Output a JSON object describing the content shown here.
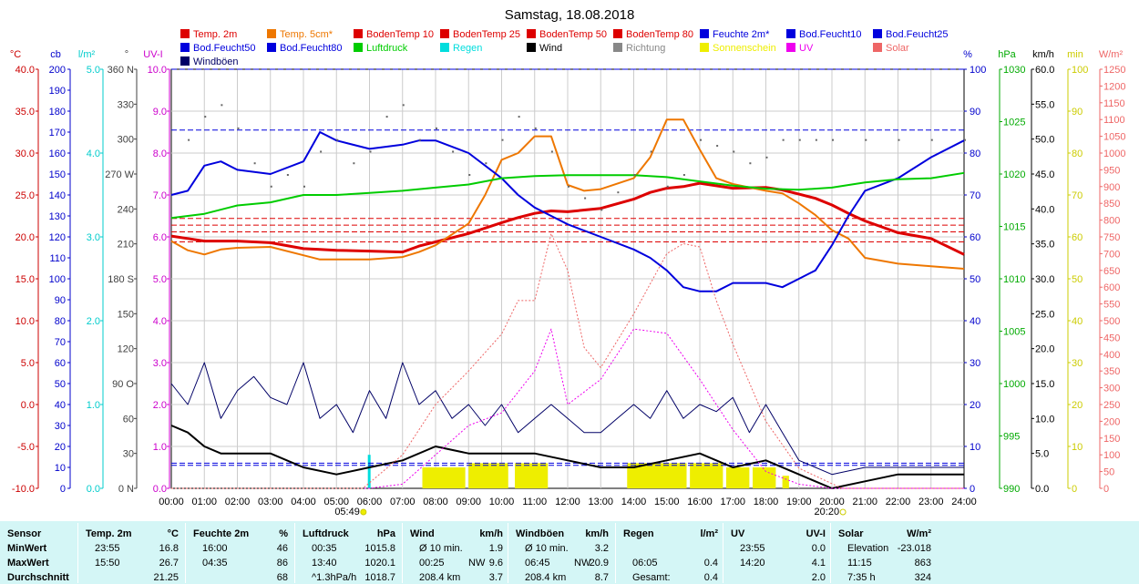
{
  "chart_data": {
    "type": "line",
    "title": "Samstag, 18.08.2018",
    "x_ticks": [
      "00:00",
      "01:00",
      "02:00",
      "03:00",
      "04:00",
      "05:00",
      "06:00",
      "07:00",
      "08:00",
      "09:00",
      "10:00",
      "11:00",
      "12:00",
      "13:00",
      "14:00",
      "15:00",
      "16:00",
      "17:00",
      "18:00",
      "19:00",
      "20:00",
      "21:00",
      "22:00",
      "23:00",
      "24:00"
    ],
    "xlim_hours": [
      0,
      24
    ],
    "grid": true,
    "legend_position": "top",
    "sunrise": "05:49",
    "sunset": "20:20",
    "axes": {
      "temp": {
        "unit": "°C",
        "ticks": [
          "40.0",
          "35.0",
          "30.0",
          "25.0",
          "20.0",
          "15.0",
          "10.0",
          "5.0",
          "0.0",
          "-5.0",
          "-10.0"
        ],
        "range": [
          -10,
          40
        ],
        "color": "#cc0000"
      },
      "cb": {
        "unit": "cb",
        "ticks": [
          "200",
          "190",
          "180",
          "170",
          "160",
          "150",
          "140",
          "130",
          "120",
          "110",
          "100",
          "90",
          "80",
          "70",
          "60",
          "50",
          "40",
          "30",
          "20",
          "10",
          "0"
        ],
        "range": [
          0,
          200
        ],
        "color": "#0000cc"
      },
      "rain": {
        "unit": "l/m²",
        "ticks": [
          "5.0",
          "4.0",
          "3.0",
          "2.0",
          "1.0",
          "0.0"
        ],
        "range": [
          0,
          5
        ],
        "color": "#00cccc"
      },
      "dir": {
        "unit": "°",
        "ticks": [
          "360 N",
          "330",
          "300",
          "270 W",
          "240",
          "210",
          "180 S",
          "150",
          "120",
          "90 O",
          "60",
          "30",
          "0 N"
        ],
        "range": [
          0,
          360
        ],
        "color": "#404040"
      },
      "uv": {
        "unit": "UV-I",
        "ticks": [
          "10.0",
          "9.0",
          "8.0",
          "7.0",
          "6.0",
          "5.0",
          "4.0",
          "3.0",
          "2.0",
          "1.0",
          "0.0"
        ],
        "range": [
          0,
          10
        ],
        "color": "#cc00cc"
      },
      "hum": {
        "unit": "%",
        "ticks": [
          "100",
          "90",
          "80",
          "70",
          "60",
          "50",
          "40",
          "30",
          "20",
          "10",
          "0"
        ],
        "range": [
          0,
          100
        ],
        "color": "#0000cc"
      },
      "press": {
        "unit": "hPa",
        "ticks": [
          "1030",
          "1025",
          "1020",
          "1015",
          "1010",
          "1005",
          "1000",
          "995",
          "990"
        ],
        "range": [
          990,
          1030
        ],
        "color": "#00aa00"
      },
      "wind": {
        "unit": "km/h",
        "ticks": [
          "60.0",
          "55.0",
          "50.0",
          "45.0",
          "40.0",
          "35.0",
          "30.0",
          "25.0",
          "20.0",
          "15.0",
          "10.0",
          "5.0",
          "0.0"
        ],
        "range": [
          0,
          60
        ],
        "color": "#000000"
      },
      "sunmin": {
        "unit": "min",
        "ticks": [
          "100",
          "90",
          "80",
          "70",
          "60",
          "50",
          "40",
          "30",
          "20",
          "10",
          "0"
        ],
        "range": [
          0,
          100
        ],
        "color": "#cccc00"
      },
      "solar": {
        "unit": "W/m²",
        "ticks": [
          "1250",
          "1200",
          "1150",
          "1100",
          "1050",
          "1000",
          "950",
          "900",
          "850",
          "800",
          "750",
          "700",
          "650",
          "600",
          "550",
          "500",
          "450",
          "400",
          "350",
          "300",
          "250",
          "200",
          "150",
          "100",
          "50",
          "0"
        ],
        "range": [
          0,
          1250
        ],
        "color": "#ee6666"
      }
    },
    "legend": [
      {
        "label": "Temp. 2m",
        "color": "#dd0000"
      },
      {
        "label": "Temp. 5cm*",
        "color": "#ee7700"
      },
      {
        "label": "BodenTemp 10",
        "color": "#dd0000"
      },
      {
        "label": "BodenTemp 25",
        "color": "#dd0000"
      },
      {
        "label": "BodenTemp 50",
        "color": "#dd0000"
      },
      {
        "label": "BodenTemp 80",
        "color": "#dd0000"
      },
      {
        "label": "Feuchte 2m*",
        "color": "#0000dd"
      },
      {
        "label": "Bod.Feucht10",
        "color": "#0000dd"
      },
      {
        "label": "Bod.Feucht25",
        "color": "#0000dd"
      },
      {
        "label": "Bod.Feucht50",
        "color": "#0000dd"
      },
      {
        "label": "Bod.Feucht80",
        "color": "#0000dd"
      },
      {
        "label": "Luftdruck",
        "color": "#00cc00"
      },
      {
        "label": "Regen",
        "color": "#00dddd"
      },
      {
        "label": "Wind",
        "color": "#000000"
      },
      {
        "label": "Richtung",
        "color": "#888888"
      },
      {
        "label": "Sonnenschein",
        "color": "#eeee00"
      },
      {
        "label": "UV",
        "color": "#ee00ee"
      },
      {
        "label": "Solar",
        "color": "#ee6666"
      },
      {
        "label": "Windböen",
        "color": "#000066"
      }
    ],
    "series": [
      {
        "name": "Temp. 2m",
        "axis": "temp",
        "color": "#dd0000",
        "width": 3,
        "x": [
          0,
          0.5,
          1,
          2,
          3,
          4,
          4.5,
          5,
          6,
          7,
          7.5,
          8,
          9,
          10,
          10.5,
          11,
          11.5,
          12,
          13,
          14,
          14.5,
          15,
          15.5,
          16,
          16.5,
          17,
          18,
          18.5,
          19,
          19.5,
          20,
          20.5,
          21,
          22,
          23,
          24
        ],
        "y": [
          20.1,
          19.8,
          19.5,
          19.5,
          19.3,
          18.6,
          18.5,
          18.4,
          18.3,
          18.2,
          18.9,
          19.4,
          20.4,
          21.7,
          22.3,
          22.8,
          23.1,
          23.0,
          23.4,
          24.5,
          25.3,
          25.8,
          26.0,
          26.4,
          26.1,
          25.8,
          25.9,
          25.6,
          25.1,
          24.6,
          23.8,
          22.8,
          21.9,
          20.5,
          19.8,
          17.9
        ]
      },
      {
        "name": "Temp. 5cm*",
        "axis": "temp",
        "color": "#ee7700",
        "width": 2,
        "x": [
          0,
          0.5,
          1,
          1.5,
          2,
          3,
          4,
          4.5,
          5,
          6,
          7,
          7.5,
          8,
          9,
          9.5,
          10,
          10.5,
          11,
          11.5,
          12,
          12.5,
          13,
          14,
          14.5,
          15,
          15.5,
          16,
          16.5,
          17,
          18,
          18.5,
          19,
          19.5,
          20,
          20.5,
          21,
          22,
          23,
          24
        ],
        "y": [
          19.5,
          18.4,
          17.9,
          18.5,
          18.7,
          18.8,
          17.8,
          17.3,
          17.3,
          17.3,
          17.6,
          18.2,
          19.0,
          21.6,
          25.0,
          29.2,
          30.0,
          32.0,
          32.0,
          26.2,
          25.5,
          25.7,
          27.0,
          29.5,
          34.0,
          34.0,
          30.4,
          27.0,
          26.3,
          25.5,
          25.2,
          24.0,
          22.6,
          20.8,
          19.8,
          17.5,
          16.8,
          16.5,
          16.2
        ]
      },
      {
        "name": "Feuchte 2m*",
        "axis": "hum",
        "color": "#0000dd",
        "width": 2,
        "x": [
          0,
          0.5,
          1,
          1.5,
          2,
          3,
          4,
          4.5,
          5,
          6,
          7,
          7.5,
          8,
          9,
          10,
          10.5,
          11,
          11.5,
          12,
          13,
          14,
          14.5,
          15,
          15.5,
          16,
          16.5,
          17,
          18,
          18.5,
          19,
          19.5,
          20,
          20.5,
          21,
          22,
          23,
          24
        ],
        "y": [
          70,
          71,
          77,
          78,
          76,
          75,
          78,
          85,
          83,
          81,
          82,
          83,
          83,
          80,
          74,
          70,
          67,
          65,
          63,
          60,
          57,
          55,
          52,
          48,
          47,
          47,
          49,
          49,
          48,
          50,
          52,
          58,
          65,
          71,
          74,
          79,
          83
        ]
      },
      {
        "name": "Luftdruck",
        "axis": "press",
        "color": "#00cc00",
        "width": 2,
        "x": [
          0,
          1,
          2,
          3,
          4,
          5,
          6,
          7,
          8,
          9,
          10,
          11,
          12,
          13,
          14,
          15,
          16,
          17,
          18,
          19,
          20,
          21,
          22,
          23,
          24
        ],
        "y": [
          1015.8,
          1016.2,
          1017.0,
          1017.3,
          1018.0,
          1018.0,
          1018.2,
          1018.4,
          1018.7,
          1019.0,
          1019.6,
          1019.8,
          1019.9,
          1019.9,
          1019.9,
          1019.7,
          1019.3,
          1018.9,
          1018.6,
          1018.5,
          1018.7,
          1019.2,
          1019.5,
          1019.6,
          1020.1
        ]
      },
      {
        "name": "Wind",
        "axis": "wind",
        "color": "#000000",
        "width": 2,
        "x": [
          0,
          0.5,
          1,
          1.5,
          2,
          3,
          4,
          5,
          6,
          7,
          8,
          9,
          10,
          11,
          12,
          13,
          14,
          15,
          16,
          17,
          18,
          19,
          20,
          21,
          22,
          23,
          24
        ],
        "y": [
          9,
          8,
          6,
          5,
          5,
          5,
          3,
          2,
          3,
          4,
          6,
          5,
          5,
          5,
          4,
          3,
          3,
          4,
          5,
          3,
          4,
          2,
          0,
          1,
          2,
          2,
          2
        ]
      },
      {
        "name": "Windböen",
        "axis": "wind",
        "color": "#000066",
        "width": 1,
        "x": [
          0,
          0.5,
          1,
          1.5,
          2,
          2.5,
          3,
          3.5,
          4,
          4.5,
          5,
          5.5,
          6,
          6.5,
          7,
          7.5,
          8,
          8.5,
          9,
          9.5,
          10,
          10.5,
          11,
          11.5,
          12,
          12.5,
          13,
          13.5,
          14,
          14.5,
          15,
          15.5,
          16,
          16.5,
          17,
          17.5,
          18,
          18.5,
          19,
          19.5,
          20,
          21,
          22,
          23,
          24
        ],
        "y": [
          15,
          12,
          18,
          10,
          14,
          16,
          13,
          12,
          18,
          10,
          12,
          8,
          14,
          10,
          18,
          12,
          14,
          10,
          12,
          9,
          12,
          8,
          10,
          12,
          10,
          8,
          8,
          10,
          12,
          10,
          14,
          10,
          12,
          11,
          13,
          8,
          12,
          8,
          4,
          3,
          2,
          3,
          3,
          3,
          3
        ]
      },
      {
        "name": "UV",
        "axis": "uv",
        "color": "#ee00ee",
        "width": 1,
        "dash": "2,2",
        "x": [
          0,
          6,
          7,
          8,
          9,
          10,
          11,
          11.5,
          12,
          13,
          14,
          15,
          16,
          17,
          18,
          19,
          20,
          24
        ],
        "y": [
          0,
          0,
          0.1,
          0.8,
          1.5,
          1.8,
          2.8,
          3.8,
          2.0,
          2.6,
          3.8,
          3.7,
          2.6,
          1.4,
          0.4,
          0.1,
          0,
          0
        ]
      },
      {
        "name": "Solar",
        "axis": "solar",
        "color": "#ee6666",
        "width": 1,
        "dash": "2,2",
        "x": [
          0,
          5.8,
          7,
          8,
          9,
          10,
          10.5,
          11,
          11.5,
          12,
          12.5,
          13,
          14,
          14.5,
          15,
          15.5,
          16,
          16.5,
          17,
          18,
          19,
          20.3,
          24
        ],
        "y": [
          0,
          0,
          100,
          250,
          350,
          460,
          560,
          560,
          760,
          650,
          420,
          360,
          520,
          610,
          700,
          730,
          720,
          560,
          430,
          200,
          60,
          0,
          0
        ]
      },
      {
        "name": "Richtung",
        "axis": "dir",
        "color": "#666666",
        "width": 0,
        "points": true,
        "x": [
          0.5,
          1,
          1.5,
          2,
          2.5,
          3,
          3.5,
          4,
          4.5,
          5,
          5.5,
          6,
          6.5,
          7,
          7.5,
          8,
          8.5,
          9,
          9.5,
          10,
          10.5,
          11,
          11.5,
          12,
          12.5,
          13,
          13.5,
          14,
          14.5,
          15,
          15.5,
          16,
          16.5,
          17,
          17.5,
          18,
          18.5,
          19,
          19.5,
          20,
          21,
          22,
          23,
          24
        ],
        "y": [
          300,
          320,
          330,
          310,
          280,
          260,
          270,
          260,
          290,
          300,
          280,
          290,
          320,
          330,
          300,
          310,
          290,
          270,
          280,
          300,
          320,
          310,
          290,
          260,
          250,
          240,
          255,
          270,
          290,
          260,
          270,
          300,
          295,
          290,
          280,
          285,
          300,
          300,
          300,
          300,
          300,
          300,
          300,
          300
        ]
      }
    ],
    "reference_lines": [
      {
        "name": "BodenTemp 10",
        "axis": "temp",
        "value": 22.2,
        "color": "#dd0000"
      },
      {
        "name": "BodenTemp 25",
        "axis": "temp",
        "value": 21.4,
        "color": "#dd0000"
      },
      {
        "name": "BodenTemp 50",
        "axis": "temp",
        "value": 20.6,
        "color": "#dd0000"
      },
      {
        "name": "BodenTemp 80",
        "axis": "temp",
        "value": 19.4,
        "color": "#dd0000"
      },
      {
        "name": "Bod.Feucht10",
        "axis": "cb",
        "value": 171,
        "color": "#0000dd"
      },
      {
        "name": "Bod.Feucht25",
        "axis": "cb",
        "value": 200,
        "color": "#0000dd"
      },
      {
        "name": "Bod.Feucht50",
        "axis": "cb",
        "value": 11,
        "color": "#0000dd"
      },
      {
        "name": "Bod.Feucht80",
        "axis": "cb",
        "value": 12,
        "color": "#0000dd"
      }
    ],
    "sunshine_blocks": [
      [
        7.6,
        8.9,
        5
      ],
      [
        9.0,
        10.2,
        6
      ],
      [
        10.4,
        11.4,
        6
      ],
      [
        13.8,
        15.6,
        6
      ],
      [
        15.7,
        16.7,
        6
      ],
      [
        16.8,
        17.5,
        5
      ],
      [
        17.6,
        18.3,
        5
      ],
      [
        18.5,
        18.7,
        3
      ]
    ],
    "rain_bar": {
      "x": 5.95,
      "value": 0.4
    }
  },
  "footer": {
    "sensor": {
      "h": "Sensor",
      "rows": [
        "MinWert",
        "MaxWert",
        "Durchschnitt"
      ]
    },
    "temp": {
      "h": "Temp. 2m",
      "u": "°C",
      "t": [
        "23:55",
        "15:50",
        ""
      ],
      "v": [
        "16.8",
        "26.7",
        "21.25"
      ]
    },
    "feuchte": {
      "h": "Feuchte 2m",
      "u": "%",
      "t": [
        "16:00",
        "04:35",
        ""
      ],
      "v": [
        "46",
        "86",
        "68"
      ]
    },
    "luftdruck": {
      "h": "Luftdruck",
      "u": "hPa",
      "t": [
        "00:35",
        "13:40",
        "^1.3hPa/h"
      ],
      "v": [
        "1015.8",
        "1020.1",
        "1018.7"
      ]
    },
    "wind": {
      "h": "Wind",
      "u": "km/h",
      "t": [
        "Ø 10 min.",
        "00:25",
        "208.4 km"
      ],
      "m": [
        "",
        "NW",
        "",
        ""
      ],
      "v": [
        "1.9",
        "9.6",
        "3.7"
      ]
    },
    "boeen": {
      "h": "Windböen",
      "u": "km/h",
      "t": [
        "Ø 10 min.",
        "06:45",
        "208.4 km"
      ],
      "m": [
        "",
        "NW",
        "",
        ""
      ],
      "v": [
        "3.2",
        "20.9",
        "8.7"
      ]
    },
    "regen": {
      "h": "Regen",
      "u": "l/m²",
      "t": [
        "",
        "06:05",
        "Gesamt:"
      ],
      "v": [
        "",
        "0.4",
        "0.4"
      ]
    },
    "uv": {
      "h": "UV",
      "u": "UV-I",
      "t": [
        "23:55",
        "14:20",
        ""
      ],
      "v": [
        "0.0",
        "4.1",
        "2.0"
      ]
    },
    "solar": {
      "h": "Solar",
      "u": "W/m²",
      "t": [
        "Elevation",
        "11:15",
        "7:35 h"
      ],
      "v": [
        "-23.018",
        "863",
        "324"
      ]
    }
  }
}
